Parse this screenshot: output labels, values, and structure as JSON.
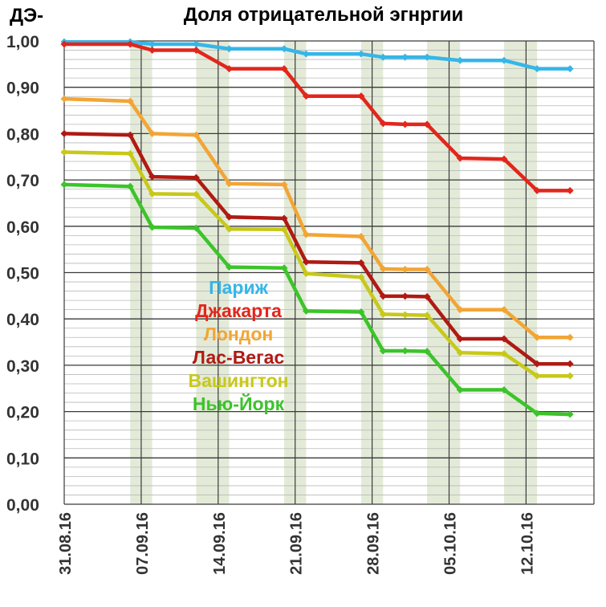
{
  "chart_data": {
    "type": "line",
    "title": "Доля отрицательной эгнргии",
    "ylabel": "ДЭ-",
    "xlabel": "",
    "ylim": [
      0,
      1
    ],
    "yticks": [
      "0,00",
      "0,10",
      "0,20",
      "0,30",
      "0,40",
      "0,50",
      "0,60",
      "0,70",
      "0,80",
      "0,90",
      "1,00"
    ],
    "x_tick_labels": [
      "31.08.16",
      "07.09.16",
      "14.09.16",
      "21.09.16",
      "28.09.16",
      "05.10.16",
      "12.10.16"
    ],
    "x": [
      "31.08.16",
      "06.09.16",
      "08.09.16",
      "12.09.16",
      "15.09.16",
      "20.09.16",
      "22.09.16",
      "27.09.16",
      "29.09.16",
      "01.10.16",
      "03.10.16",
      "06.10.16",
      "10.10.16",
      "13.10.16",
      "16.10.16"
    ],
    "highlight_bands": [
      [
        "06.09.16",
        "08.09.16"
      ],
      [
        "12.09.16",
        "15.09.16"
      ],
      [
        "20.09.16",
        "22.09.16"
      ],
      [
        "27.09.16",
        "29.09.16"
      ],
      [
        "03.10.16",
        "06.10.16"
      ],
      [
        "10.10.16",
        "13.10.16"
      ]
    ],
    "grid": true,
    "legend_placement": "center-left",
    "series": [
      {
        "name": "Париж",
        "color": "#35b6e8",
        "values": [
          0.998,
          0.998,
          0.993,
          0.993,
          0.983,
          0.983,
          0.972,
          0.972,
          0.965,
          0.965,
          0.965,
          0.958,
          0.958,
          0.94,
          0.94
        ]
      },
      {
        "name": "Джакарта",
        "color": "#e2261c",
        "values": [
          0.993,
          0.993,
          0.98,
          0.98,
          0.94,
          0.94,
          0.881,
          0.881,
          0.822,
          0.82,
          0.82,
          0.747,
          0.745,
          0.677,
          0.677
        ]
      },
      {
        "name": "Лондон",
        "color": "#f2a535",
        "values": [
          0.875,
          0.87,
          0.8,
          0.797,
          0.692,
          0.69,
          0.582,
          0.578,
          0.508,
          0.507,
          0.507,
          0.42,
          0.42,
          0.36,
          0.36
        ]
      },
      {
        "name": "Лас-Вегас",
        "color": "#b01a13",
        "values": [
          0.8,
          0.797,
          0.707,
          0.705,
          0.62,
          0.617,
          0.523,
          0.521,
          0.449,
          0.449,
          0.448,
          0.357,
          0.357,
          0.303,
          0.303
        ]
      },
      {
        "name": "Вашингтон",
        "color": "#c8c81a",
        "values": [
          0.76,
          0.757,
          0.67,
          0.669,
          0.594,
          0.593,
          0.498,
          0.49,
          0.41,
          0.409,
          0.408,
          0.327,
          0.325,
          0.277,
          0.277
        ]
      },
      {
        "name": "Нью-Йорк",
        "color": "#3cc42a",
        "values": [
          0.69,
          0.686,
          0.598,
          0.596,
          0.512,
          0.51,
          0.417,
          0.415,
          0.331,
          0.331,
          0.33,
          0.247,
          0.247,
          0.196,
          0.194
        ]
      }
    ]
  }
}
